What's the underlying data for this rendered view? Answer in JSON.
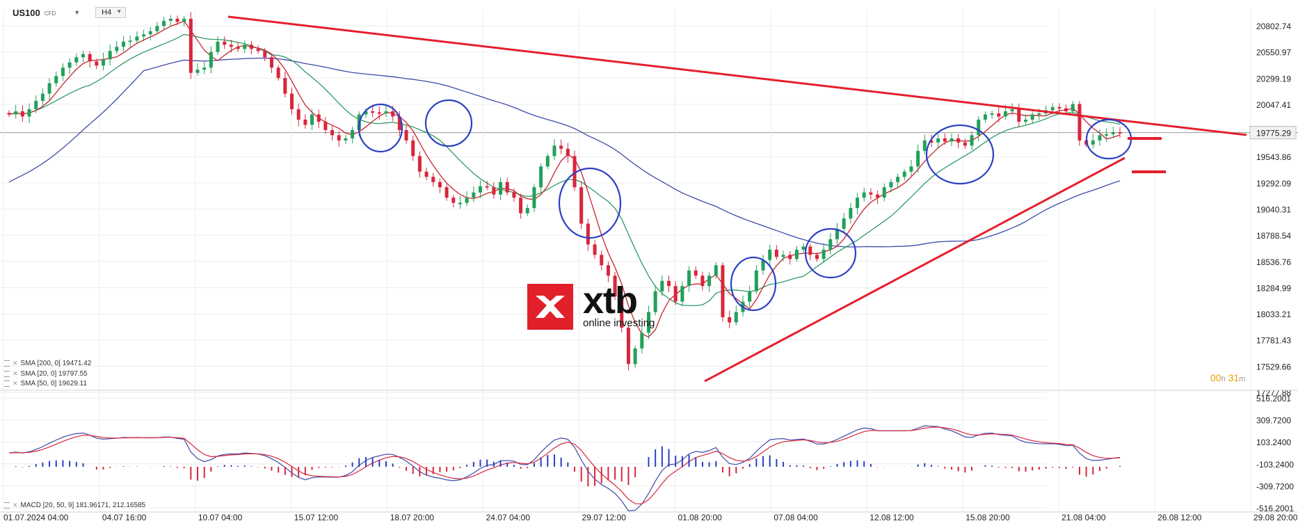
{
  "header": {
    "symbol": "US100",
    "instrument_type": "CFD",
    "timeframe": "H4"
  },
  "legend": [
    {
      "label": "SMA [200, 0] 19471.42",
      "color": "#3b4aa8"
    },
    {
      "label": "SMA [20, 0] 19797.55",
      "color": "#c4232c"
    },
    {
      "label": "SMA [50, 0] 19629.11",
      "color": "#2e9a66"
    }
  ],
  "macd_legend": {
    "label": "MACD [20, 50, 9] 181.96171, 212.16585"
  },
  "timer": {
    "hours": "00",
    "h": "h",
    "minutes": "31",
    "m": "m"
  },
  "logo": {
    "name": "xtb",
    "tagline": "online investing"
  },
  "chart_data": [
    {
      "type": "candlestick",
      "title": "US100",
      "timeframe": "H4",
      "ylim": [
        17277.88,
        20950
      ],
      "y_ticks": [
        "20802.74",
        "20550.97",
        "20299.19",
        "20047.41",
        "19775.29",
        "19543.86",
        "19292.09",
        "19040.31",
        "18788.54",
        "18536.76",
        "18284.99",
        "18033.21",
        "17781.43",
        "17529.66",
        "17277.88"
      ],
      "current_price": "19775.29",
      "x_ticks": [
        "01.07.2024  04:00",
        "04.07  16:00",
        "10.07  04:00",
        "15.07  12:00",
        "18.07  20:00",
        "24.07  04:00",
        "29.07  12:00",
        "01.08  20:00",
        "07.08  04:00",
        "12.08  12:00",
        "15.08  20:00",
        "21.08  04:00",
        "26.08  12:00",
        "29.08  20:00"
      ],
      "closes": [
        19950,
        19980,
        19930,
        20000,
        20080,
        20150,
        20250,
        20320,
        20400,
        20450,
        20500,
        20530,
        20460,
        20420,
        20480,
        20560,
        20600,
        20650,
        20660,
        20700,
        20720,
        20750,
        20800,
        20850,
        20870,
        20840,
        20870,
        20350,
        20380,
        20400,
        20550,
        20650,
        20620,
        20600,
        20580,
        20620,
        20580,
        20560,
        20500,
        20400,
        20300,
        20150,
        20000,
        19900,
        19850,
        19950,
        19880,
        19800,
        19750,
        19700,
        19720,
        19800,
        19950,
        19980,
        19970,
        19960,
        19980,
        19930,
        19800,
        19700,
        19550,
        19400,
        19350,
        19300,
        19250,
        19150,
        19100,
        19100,
        19150,
        19200,
        19260,
        19250,
        19180,
        19300,
        19200,
        19150,
        19000,
        19050,
        19250,
        19450,
        19550,
        19650,
        19620,
        19550,
        19250,
        18900,
        18700,
        18600,
        18500,
        18400,
        18200,
        17900,
        17550,
        17700,
        17850,
        18050,
        18250,
        18350,
        18300,
        18150,
        18300,
        18450,
        18400,
        18300,
        18400,
        18500,
        18000,
        17950,
        18050,
        18150,
        18250,
        18450,
        18550,
        18650,
        18580,
        18600,
        18560,
        18650,
        18680,
        18600,
        18560,
        18650,
        18750,
        18850,
        18950,
        19050,
        19150,
        19200,
        19180,
        19150,
        19250,
        19300,
        19350,
        19400,
        19450,
        19600,
        19700,
        19680,
        19720,
        19690,
        19720,
        19680,
        19650,
        19750,
        19900,
        19950,
        19960,
        19930,
        19980,
        20000,
        19880,
        19900,
        19950,
        19960,
        19990,
        20020,
        20010,
        19980,
        20050,
        19700,
        19660,
        19700,
        19750,
        19760,
        19780,
        19775
      ],
      "indicators": [
        {
          "name": "SMA [200, 0]",
          "value": "19471.42",
          "color": "#3b4aa8"
        },
        {
          "name": "SMA [20, 0]",
          "value": "19797.55",
          "color": "#c4232c"
        },
        {
          "name": "SMA [50, 0]",
          "value": "19629.11",
          "color": "#2e9a66"
        }
      ],
      "annotations": [
        "descending resistance trendline",
        "ascending support trendline",
        "blue circles marking consolidation zones",
        "red horizontal arrows at last price"
      ]
    },
    {
      "type": "line+histogram",
      "title": "MACD [20, 50, 9]",
      "values": "181.96171, 212.16585",
      "ylim": [
        -516.2001,
        516.2001
      ],
      "y_ticks": [
        "516.2001",
        "309.7200",
        "103.2400",
        "-103.2400",
        "-309.7200",
        "-516.2001"
      ]
    }
  ],
  "colors": {
    "bull": "#22a05a",
    "bear": "#d8263b",
    "trend": "#e61e2b",
    "circle": "#2b3fc4",
    "grid": "#ececec"
  }
}
